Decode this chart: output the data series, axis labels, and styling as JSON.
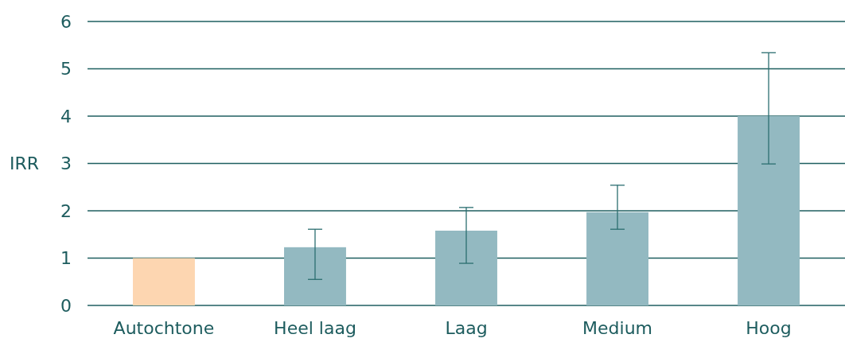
{
  "chart_data": {
    "type": "bar",
    "ylabel": "IRR",
    "categories": [
      "Autochtone",
      "Heel laag",
      "Laag",
      "Medium",
      "Hoog"
    ],
    "values": [
      1,
      1.23,
      1.58,
      1.97,
      4
    ],
    "colors": [
      "#fdd6b1",
      "#93b9c1",
      "#93b9c1",
      "#93b9c1",
      "#93b9c1"
    ],
    "errors": [
      null,
      [
        0.55,
        1.61
      ],
      [
        0.89,
        2.07
      ],
      [
        1.61,
        2.54
      ],
      [
        2.99,
        5.34
      ]
    ],
    "ylim": [
      0,
      6
    ],
    "yticks": [
      0,
      1,
      2,
      3,
      4,
      5,
      6
    ],
    "grid": true
  }
}
